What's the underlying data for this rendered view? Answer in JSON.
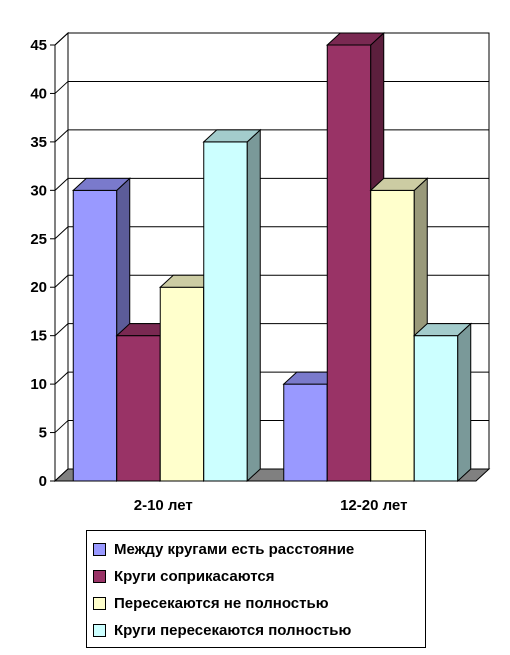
{
  "chart_data": {
    "type": "bar",
    "categories": [
      "2-10 лет",
      "12-20 лет"
    ],
    "series": [
      {
        "name": "Между кругами есть расстояние",
        "values": [
          30,
          10
        ],
        "color": "#9999ff",
        "side_color": "#5c5c99",
        "top_color": "#7a7acc"
      },
      {
        "name": "Круги соприкасаются",
        "values": [
          15,
          45
        ],
        "color": "#993366",
        "side_color": "#5c1f3d",
        "top_color": "#7a2952"
      },
      {
        "name": "Пересекаются не полностью",
        "values": [
          20,
          30
        ],
        "color": "#ffffcc",
        "side_color": "#99997a",
        "top_color": "#cccca3"
      },
      {
        "name": "Круги пересекаются полностью",
        "values": [
          35,
          15
        ],
        "color": "#ccffff",
        "side_color": "#7a9999",
        "top_color": "#a3cccc"
      }
    ],
    "y_ticks": [
      "0",
      "5",
      "10",
      "15",
      "20",
      "25",
      "30",
      "35",
      "40",
      "45"
    ],
    "ylim": [
      0,
      45
    ],
    "grid": true,
    "three_d": true,
    "legend_position": "bottom",
    "title": "",
    "xlabel": "",
    "ylabel": ""
  }
}
